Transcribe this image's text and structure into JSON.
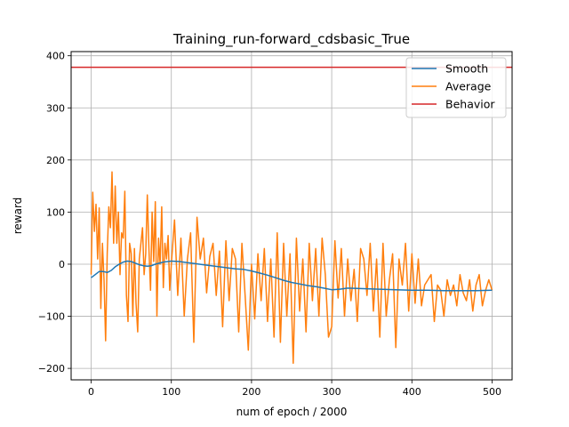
{
  "chart_data": {
    "type": "line",
    "title": "Training_run-forward_cdsbasic_True",
    "xlabel": "num of epoch / 2000",
    "ylabel": "reward",
    "xlim": [
      -25,
      525
    ],
    "ylim": [
      -222,
      408
    ],
    "xticks": [
      0,
      100,
      200,
      300,
      400,
      500
    ],
    "yticks": [
      -200,
      -100,
      0,
      100,
      200,
      300,
      400
    ],
    "grid": true,
    "legend_position": "top-right",
    "series": [
      {
        "name": "Smooth",
        "color": "#1f77b4",
        "x": [
          0,
          5,
          10,
          15,
          20,
          25,
          30,
          35,
          40,
          45,
          50,
          55,
          60,
          65,
          70,
          75,
          80,
          90,
          100,
          110,
          120,
          130,
          140,
          150,
          160,
          170,
          180,
          190,
          200,
          210,
          220,
          230,
          240,
          250,
          260,
          270,
          280,
          290,
          300,
          310,
          320,
          340,
          360,
          380,
          400,
          420,
          440,
          460,
          480,
          500
        ],
        "y": [
          -26,
          -20,
          -14,
          -14,
          -16,
          -12,
          -5,
          0,
          4,
          6,
          5,
          2,
          -1,
          -3,
          -4,
          -3,
          0,
          4,
          6,
          5,
          3,
          1,
          -1,
          -3,
          -5,
          -7,
          -9,
          -10,
          -13,
          -17,
          -21,
          -26,
          -31,
          -35,
          -38,
          -41,
          -43,
          -46,
          -49,
          -48,
          -46,
          -47,
          -48,
          -49,
          -50,
          -50,
          -51,
          -51,
          -51,
          -50
        ]
      },
      {
        "name": "Average",
        "color": "#ff7f0e",
        "x": [
          0,
          2,
          4,
          6,
          8,
          10,
          12,
          14,
          16,
          18,
          20,
          22,
          24,
          26,
          28,
          30,
          32,
          34,
          36,
          38,
          40,
          42,
          44,
          46,
          48,
          50,
          52,
          54,
          56,
          58,
          60,
          62,
          64,
          66,
          68,
          70,
          72,
          74,
          76,
          78,
          80,
          82,
          84,
          86,
          88,
          90,
          92,
          94,
          96,
          98,
          100,
          104,
          108,
          112,
          116,
          120,
          124,
          128,
          132,
          136,
          140,
          144,
          148,
          152,
          156,
          160,
          164,
          168,
          172,
          176,
          180,
          184,
          188,
          192,
          196,
          200,
          204,
          208,
          212,
          216,
          220,
          224,
          228,
          232,
          236,
          240,
          244,
          248,
          252,
          256,
          260,
          264,
          268,
          272,
          276,
          280,
          284,
          288,
          292,
          296,
          300,
          304,
          308,
          312,
          316,
          320,
          324,
          328,
          332,
          336,
          340,
          344,
          348,
          352,
          356,
          360,
          364,
          368,
          372,
          376,
          380,
          384,
          388,
          392,
          396,
          400,
          404,
          408,
          412,
          416,
          420,
          424,
          428,
          432,
          436,
          440,
          444,
          448,
          452,
          456,
          460,
          464,
          468,
          472,
          476,
          480,
          484,
          488,
          492,
          496,
          500
        ],
        "y": [
          -20,
          138,
          63,
          115,
          10,
          108,
          -85,
          40,
          -30,
          -147,
          20,
          110,
          70,
          177,
          40,
          150,
          40,
          100,
          -20,
          60,
          50,
          140,
          -60,
          -110,
          40,
          20,
          -100,
          30,
          -75,
          -130,
          10,
          40,
          70,
          -20,
          20,
          133,
          30,
          -50,
          100,
          5,
          120,
          -100,
          50,
          0,
          110,
          -45,
          40,
          10,
          55,
          -50,
          0,
          85,
          -60,
          50,
          -100,
          10,
          60,
          -150,
          90,
          10,
          50,
          -55,
          15,
          40,
          -60,
          25,
          -120,
          45,
          -70,
          30,
          10,
          -130,
          40,
          -60,
          -165,
          0,
          -105,
          20,
          -70,
          30,
          -110,
          10,
          -140,
          60,
          -150,
          40,
          -100,
          20,
          -190,
          50,
          -90,
          10,
          -130,
          40,
          -70,
          30,
          -100,
          50,
          -20,
          -140,
          -120,
          45,
          -65,
          30,
          -100,
          10,
          -70,
          -10,
          -110,
          30,
          10,
          -60,
          40,
          -90,
          10,
          -140,
          40,
          -100,
          -30,
          20,
          -160,
          10,
          -40,
          40,
          -90,
          20,
          -75,
          10,
          -80,
          -40,
          -30,
          -20,
          -110,
          -40,
          -50,
          -100,
          -30,
          -60,
          -40,
          -80,
          -20,
          -55,
          -70,
          -30,
          -90,
          -40,
          -20,
          -80,
          -50,
          -30,
          -50
        ]
      },
      {
        "name": "Behavior",
        "color": "#d62728",
        "x": [
          -25,
          525
        ],
        "y": [
          378,
          378
        ]
      }
    ]
  }
}
